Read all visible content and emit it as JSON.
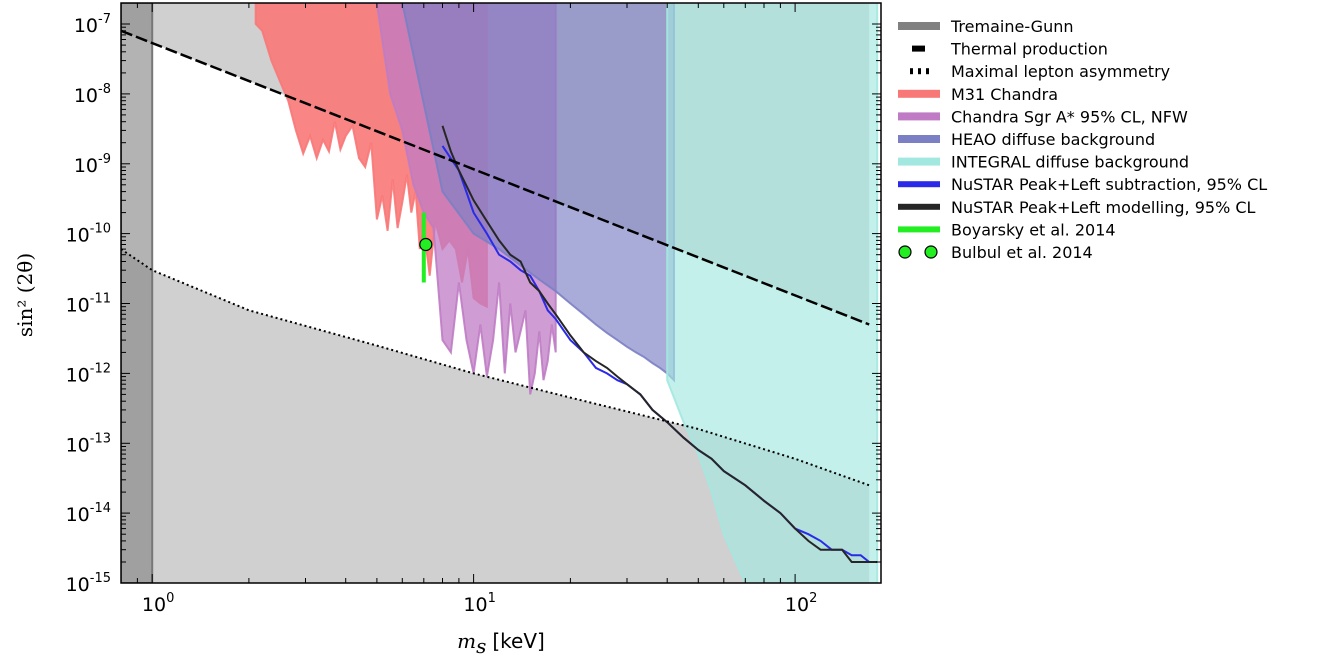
{
  "chart_data": {
    "type": "area",
    "xscale": "log",
    "yscale": "log",
    "xlim": [
      0.8,
      185
    ],
    "ylim": [
      1e-15,
      2e-07
    ],
    "xlabel_var": "m",
    "xlabel_sub": "s",
    "xlabel_unit": "[keV]",
    "ylabel": "sin² (2θ)",
    "x_ticks": [
      {
        "base": "10",
        "exp": "0",
        "value": 1
      },
      {
        "base": "10",
        "exp": "1",
        "value": 10
      },
      {
        "base": "10",
        "exp": "2",
        "value": 100
      }
    ],
    "y_ticks": [
      {
        "base": "10",
        "exp": "-7",
        "value": 1e-07
      },
      {
        "base": "10",
        "exp": "-8",
        "value": 1e-08
      },
      {
        "base": "10",
        "exp": "-9",
        "value": 1e-09
      },
      {
        "base": "10",
        "exp": "-10",
        "value": 1e-10
      },
      {
        "base": "10",
        "exp": "-11",
        "value": 1e-11
      },
      {
        "base": "10",
        "exp": "-12",
        "value": 1e-12
      },
      {
        "base": "10",
        "exp": "-13",
        "value": 1e-13
      },
      {
        "base": "10",
        "exp": "-14",
        "value": 1e-14
      },
      {
        "base": "10",
        "exp": "-15",
        "value": 1e-15
      }
    ],
    "legend_placement": "right, outside plot",
    "legend": [
      {
        "label": "Tremaine-Gunn",
        "kind": "patch",
        "color": "#808080"
      },
      {
        "label": "Thermal production",
        "kind": "dashed",
        "color": "#000000"
      },
      {
        "label": "Maximal lepton asymmetry",
        "kind": "dotted",
        "color": "#000000"
      },
      {
        "label": "M31 Chandra",
        "kind": "patch",
        "color": "#f87878"
      },
      {
        "label": "Chandra Sgr A* 95% CL, NFW",
        "kind": "patch",
        "color": "#bf7cc4"
      },
      {
        "label": "HEAO diffuse background",
        "kind": "patch",
        "color": "#7b7fc4"
      },
      {
        "label": "INTEGRAL diffuse background",
        "kind": "patch",
        "color": "#a3e8e0"
      },
      {
        "label": "NuSTAR Peak+Left subtraction, 95% CL",
        "kind": "line",
        "color": "#2a2ae8"
      },
      {
        "label": "NuSTAR Peak+Left modelling, 95% CL",
        "kind": "line",
        "color": "#262626"
      },
      {
        "label": "Boyarsky et al. 2014",
        "kind": "line",
        "color": "#22ee22"
      },
      {
        "label": "Bulbul et al. 2014",
        "kind": "markers",
        "color": "#22ee22"
      }
    ],
    "series": [
      {
        "name": "Tremaine-Gunn",
        "kind": "exclusion",
        "x_max": 1.0,
        "color": "#808080"
      },
      {
        "name": "Thermal production",
        "kind": "dashed-line",
        "x": [
          0.8,
          170
        ],
        "y": [
          8e-08,
          5e-12
        ]
      },
      {
        "name": "Maximal lepton asymmetry",
        "kind": "dotted-line",
        "x": [
          0.8,
          1.0,
          2,
          5,
          10,
          20,
          50,
          100,
          170
        ],
        "y": [
          6e-11,
          3e-11,
          8e-12,
          2.5e-12,
          1e-12,
          4.5e-13,
          1.6e-13,
          6e-14,
          2.5e-14
        ]
      },
      {
        "name": "M31 Chandra",
        "kind": "exclusion-above",
        "color": "#f87878",
        "x": [
          2.1,
          2.2,
          2.35,
          2.5,
          2.65,
          2.8,
          2.95,
          3.1,
          3.25,
          3.4,
          3.55,
          3.7,
          3.85,
          4.0,
          4.2,
          4.4,
          4.6,
          4.8,
          5.0,
          5.2,
          5.4,
          5.6,
          5.8,
          6.0,
          6.2,
          6.4,
          6.6,
          6.8,
          7.0,
          7.3,
          7.6,
          8.0,
          8.4,
          8.8,
          9.2,
          9.6,
          10.0,
          10.5,
          11.0
        ],
        "y": [
          1e-07,
          8e-08,
          3e-08,
          1.5e-08,
          8e-09,
          3e-09,
          1.4e-09,
          2.5e-09,
          1.2e-09,
          2.2e-09,
          1.5e-09,
          4e-09,
          1.6e-09,
          2.5e-09,
          3.5e-09,
          1.2e-09,
          9e-10,
          2e-09,
          1.6e-10,
          3.5e-10,
          1.1e-10,
          6e-10,
          1.2e-10,
          2.8e-10,
          7e-10,
          2e-10,
          4e-10,
          6e-11,
          1.2e-10,
          2.5e-11,
          1.5e-10,
          6e-11,
          8e-11,
          6e-11,
          2e-11,
          6e-11,
          1.2e-11,
          1e-11,
          9e-12
        ]
      },
      {
        "name": "Chandra Sgr A* 95% CL, NFW",
        "kind": "exclusion-above",
        "color": "#bf7cc4",
        "x": [
          4.0,
          4.5,
          5.0,
          5.5,
          6.0,
          6.5,
          7.0,
          7.5,
          8.0,
          8.5,
          9.0,
          9.5,
          10.0,
          10.5,
          11.0,
          11.5,
          12.0,
          12.5,
          13.0,
          13.5,
          14.0,
          14.5,
          15.0,
          15.5,
          16.0,
          16.5,
          17.0,
          17.5,
          18.0
        ],
        "y": [
          2e-07,
          2e-07,
          2e-07,
          1e-08,
          3e-09,
          5e-10,
          2e-10,
          1.2e-10,
          3e-12,
          2e-12,
          2e-11,
          3e-12,
          1e-12,
          5e-12,
          9e-13,
          3e-12,
          2e-11,
          1e-12,
          1e-11,
          2e-12,
          4e-12,
          8e-12,
          5e-13,
          1e-12,
          4e-12,
          8e-13,
          1.5e-12,
          5e-12,
          2e-12
        ]
      },
      {
        "name": "HEAO diffuse background",
        "kind": "exclusion-above",
        "color": "#7b7fc4",
        "x": [
          6.0,
          8.0,
          10.0,
          12.0,
          14.0,
          16.0,
          18.0,
          20.0,
          22.0,
          24.0,
          26.0,
          28.0,
          30.0,
          32.0,
          34.0,
          36.0,
          38.0,
          40.0,
          42.0
        ],
        "y": [
          2e-07,
          4e-10,
          1e-10,
          6e-11,
          3.5e-11,
          2.2e-11,
          1.5e-11,
          1e-11,
          7e-12,
          5e-12,
          3.8e-12,
          3e-12,
          2.4e-12,
          2e-12,
          1.7e-12,
          1.4e-12,
          1.2e-12,
          1e-12,
          8e-13
        ]
      },
      {
        "name": "INTEGRAL diffuse background",
        "kind": "exclusion-above",
        "color": "#a3e8e0",
        "x": [
          40,
          45,
          50,
          55,
          60,
          70,
          80,
          100,
          120,
          140,
          160,
          180
        ],
        "y": [
          8e-13,
          2e-13,
          7e-14,
          2e-14,
          5e-15,
          1e-15,
          1e-15,
          1e-15,
          1e-15,
          1e-15,
          1e-15,
          1e-15
        ]
      },
      {
        "name": "NuSTAR Peak+Left subtraction, 95% CL",
        "kind": "line",
        "color": "#2a2ae8",
        "x": [
          8.0,
          9.0,
          10.0,
          11.0,
          12.0,
          13.0,
          14.0,
          15.0,
          16.0,
          17.0,
          18.0,
          20.0,
          22.0,
          24.0,
          26.0,
          28.0,
          30.0,
          33.0,
          36.0,
          40.0,
          45.0,
          50.0,
          55.0,
          60.0,
          70.0,
          80.0,
          90.0,
          100.0,
          110.0,
          120.0,
          130.0,
          140.0,
          150.0,
          160.0,
          170.0,
          180.0
        ],
        "y": [
          1.8e-09,
          8e-10,
          2e-10,
          1e-10,
          5e-11,
          4e-11,
          3e-11,
          2.5e-11,
          1.5e-11,
          8e-12,
          6e-12,
          3e-12,
          2e-12,
          1.2e-12,
          1e-12,
          8e-13,
          7e-13,
          5e-13,
          3e-13,
          2e-13,
          1.2e-13,
          8e-14,
          6e-14,
          4e-14,
          2.5e-14,
          1.5e-14,
          1e-14,
          6e-15,
          5e-15,
          4e-15,
          3e-15,
          3e-15,
          2.5e-15,
          2.5e-15,
          2e-15,
          2e-15
        ]
      },
      {
        "name": "NuSTAR Peak+Left modelling, 95% CL",
        "kind": "line",
        "color": "#262626",
        "x": [
          8.0,
          8.5,
          9.0,
          10.0,
          11.0,
          12.0,
          13.0,
          14.0,
          15.0,
          16.0,
          17.0,
          18.0,
          20.0,
          22.0,
          24.0,
          26.0,
          28.0,
          30.0,
          33.0,
          36.0,
          40.0,
          45.0,
          50.0,
          55.0,
          60.0,
          70.0,
          80.0,
          90.0,
          100.0,
          110.0,
          120.0,
          130.0,
          140.0,
          150.0,
          160.0,
          170.0,
          180.0
        ],
        "y": [
          3.5e-09,
          1.5e-09,
          8e-10,
          3e-10,
          1.5e-10,
          8e-11,
          5e-11,
          4e-11,
          2e-11,
          1.5e-11,
          1e-11,
          7e-12,
          3.5e-12,
          2e-12,
          1.5e-12,
          1.2e-12,
          9e-13,
          7e-13,
          5e-13,
          3e-13,
          2e-13,
          1.2e-13,
          8e-14,
          6e-14,
          4e-14,
          2.5e-14,
          1.5e-14,
          1e-14,
          6e-15,
          4e-15,
          3e-15,
          3e-15,
          3e-15,
          2e-15,
          2e-15,
          2e-15,
          2e-15
        ]
      },
      {
        "name": "Boyarsky et al. 2014",
        "kind": "errorbar",
        "color": "#22ee22",
        "x": [
          7.0
        ],
        "y_range": [
          2e-11,
          2e-10
        ]
      },
      {
        "name": "Bulbul et al. 2014",
        "kind": "marker",
        "color": "#22ee22",
        "x": [
          7.1
        ],
        "y": [
          7e-11
        ]
      }
    ]
  }
}
